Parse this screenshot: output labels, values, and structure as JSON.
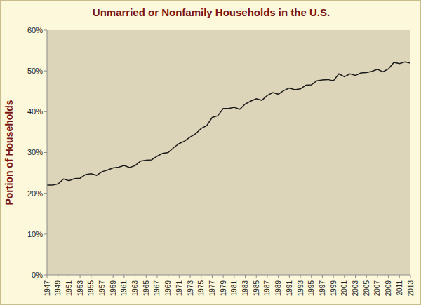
{
  "chart_data": {
    "type": "line",
    "title": "Unmarried or Nonfamily Households in the U.S.",
    "y_label": "Portion of Households",
    "x": [
      1947,
      1948,
      1949,
      1950,
      1951,
      1952,
      1953,
      1954,
      1955,
      1956,
      1957,
      1958,
      1959,
      1960,
      1961,
      1962,
      1963,
      1964,
      1965,
      1966,
      1967,
      1968,
      1969,
      1970,
      1971,
      1972,
      1973,
      1974,
      1975,
      1976,
      1977,
      1978,
      1979,
      1980,
      1981,
      1982,
      1983,
      1984,
      1985,
      1986,
      1987,
      1988,
      1989,
      1990,
      1991,
      1992,
      1993,
      1994,
      1995,
      1996,
      1997,
      1998,
      1999,
      2000,
      2001,
      2002,
      2003,
      2004,
      2005,
      2006,
      2007,
      2008,
      2009,
      2010,
      2011,
      2012,
      2013
    ],
    "values": [
      22.0,
      22.0,
      22.3,
      23.5,
      23.1,
      23.6,
      23.7,
      24.6,
      24.8,
      24.4,
      25.3,
      25.7,
      26.2,
      26.4,
      26.8,
      26.3,
      26.8,
      27.9,
      28.1,
      28.2,
      29.1,
      29.8,
      30.0,
      31.2,
      32.2,
      32.8,
      33.8,
      34.6,
      35.9,
      36.6,
      38.6,
      39.0,
      40.8,
      40.8,
      41.1,
      40.6,
      41.9,
      42.6,
      43.2,
      42.8,
      44.0,
      44.7,
      44.3,
      45.2,
      45.8,
      45.4,
      45.6,
      46.5,
      46.6,
      47.6,
      47.8,
      47.9,
      47.6,
      49.3,
      48.6,
      49.3,
      48.9,
      49.5,
      49.6,
      49.9,
      50.4,
      49.8,
      50.5,
      52.1,
      51.8,
      52.2,
      51.9
    ],
    "color": "#1a1a1a",
    "xlim": [
      1947,
      2013
    ],
    "xticks": [
      1947,
      1949,
      1951,
      1953,
      1955,
      1957,
      1959,
      1961,
      1963,
      1965,
      1967,
      1969,
      1971,
      1973,
      1975,
      1977,
      1979,
      1981,
      1983,
      1985,
      1987,
      1989,
      1991,
      1993,
      1995,
      1997,
      1999,
      2001,
      2003,
      2005,
      2007,
      2009,
      2011,
      2013
    ],
    "ylim": [
      0,
      60
    ],
    "yticks": [
      {
        "value": 0,
        "label": "0%"
      },
      {
        "value": 10,
        "label": "10%"
      },
      {
        "value": 20,
        "label": "20%"
      },
      {
        "value": 30,
        "label": "30%"
      },
      {
        "value": 40,
        "label": "40%"
      },
      {
        "value": 50,
        "label": "50%"
      },
      {
        "value": 60,
        "label": "60%"
      }
    ],
    "grid": false
  }
}
